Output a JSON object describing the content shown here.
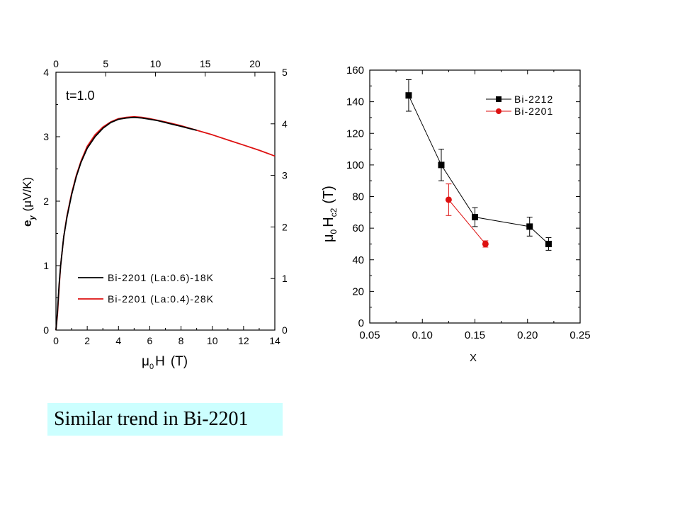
{
  "caption": "Similar trend in Bi-2201",
  "colors": {
    "black": "#000000",
    "red": "#dd1111",
    "caption_bg": "#ccffff"
  },
  "chart_data": [
    {
      "type": "line",
      "title": "",
      "annotation": "t=1.0",
      "xlabel": {
        "mu": "μ",
        "sub": "0",
        "main": "H",
        "unit": "(T)"
      },
      "ylabel": {
        "e": "e",
        "sub": "y",
        "unit_open": "(",
        "mu": "μ",
        "unit_rest": "V/K",
        "unit_close": ")"
      },
      "xlim": [
        0,
        14
      ],
      "xticks": [
        0,
        2,
        4,
        6,
        8,
        10,
        12,
        14
      ],
      "ylim": [
        0,
        4
      ],
      "yticks": [
        0,
        1,
        2,
        3,
        4
      ],
      "top_axis": {
        "lim": [
          0,
          22
        ],
        "ticks": [
          0,
          5,
          10,
          15,
          20
        ]
      },
      "right_axis": {
        "lim": [
          0,
          5
        ],
        "ticks": [
          0,
          1,
          2,
          3,
          4,
          5
        ]
      },
      "legend": "bottom-right",
      "grid": false,
      "series": [
        {
          "name": "Bi-2201 (La:0.6)-18K",
          "color": "#000000",
          "x": [
            0.1,
            0.2,
            0.3,
            0.5,
            0.7,
            1.0,
            1.3,
            1.6,
            2.0,
            2.5,
            3.0,
            3.5,
            4.0,
            4.5,
            5.0,
            5.5,
            6.0,
            6.5,
            7.0,
            7.5,
            8.0,
            8.5,
            9.0
          ],
          "y": [
            0.3,
            0.7,
            1.0,
            1.45,
            1.75,
            2.1,
            2.38,
            2.6,
            2.82,
            3.0,
            3.13,
            3.22,
            3.27,
            3.29,
            3.3,
            3.29,
            3.27,
            3.25,
            3.22,
            3.19,
            3.16,
            3.13,
            3.1
          ]
        },
        {
          "name": "Bi-2201 (La:0.4)-28K",
          "color": "#dd1111",
          "x": [
            0.1,
            0.2,
            0.3,
            0.5,
            0.7,
            1.0,
            1.3,
            1.6,
            2.0,
            2.5,
            3.0,
            3.5,
            4.0,
            4.5,
            5.0,
            5.5,
            6.0,
            7.0,
            8.0,
            9.0,
            10.0,
            11.0,
            12.0,
            13.0,
            14.0
          ],
          "y": [
            0.25,
            0.65,
            1.0,
            1.45,
            1.77,
            2.12,
            2.4,
            2.62,
            2.85,
            3.03,
            3.15,
            3.23,
            3.28,
            3.3,
            3.31,
            3.3,
            3.28,
            3.23,
            3.17,
            3.1,
            3.03,
            2.95,
            2.87,
            2.79,
            2.7
          ]
        }
      ]
    },
    {
      "type": "scatter",
      "title": "",
      "xlabel": "X",
      "ylabel": {
        "mu": "μ",
        "sub0": "0",
        "main": "H",
        "subc2": "c2",
        "unit": "(T)"
      },
      "xlim": [
        0.05,
        0.25
      ],
      "xticks": [
        "0.05",
        "0.10",
        "0.15",
        "0.20",
        "0.25"
      ],
      "ylim": [
        0,
        160
      ],
      "yticks": [
        0,
        20,
        40,
        60,
        80,
        100,
        120,
        140,
        160
      ],
      "legend": "top-right",
      "grid": false,
      "series": [
        {
          "name": "Bi-2212",
          "marker": "square",
          "color": "#000000",
          "x": [
            0.087,
            0.118,
            0.15,
            0.202,
            0.22
          ],
          "y": [
            144,
            100,
            67,
            61,
            50
          ],
          "err": [
            10,
            10,
            6,
            6,
            4
          ]
        },
        {
          "name": "Bi-2201",
          "marker": "circle",
          "color": "#dd1111",
          "x": [
            0.125,
            0.16
          ],
          "y": [
            78,
            50
          ],
          "err": [
            10,
            2
          ]
        }
      ]
    }
  ]
}
